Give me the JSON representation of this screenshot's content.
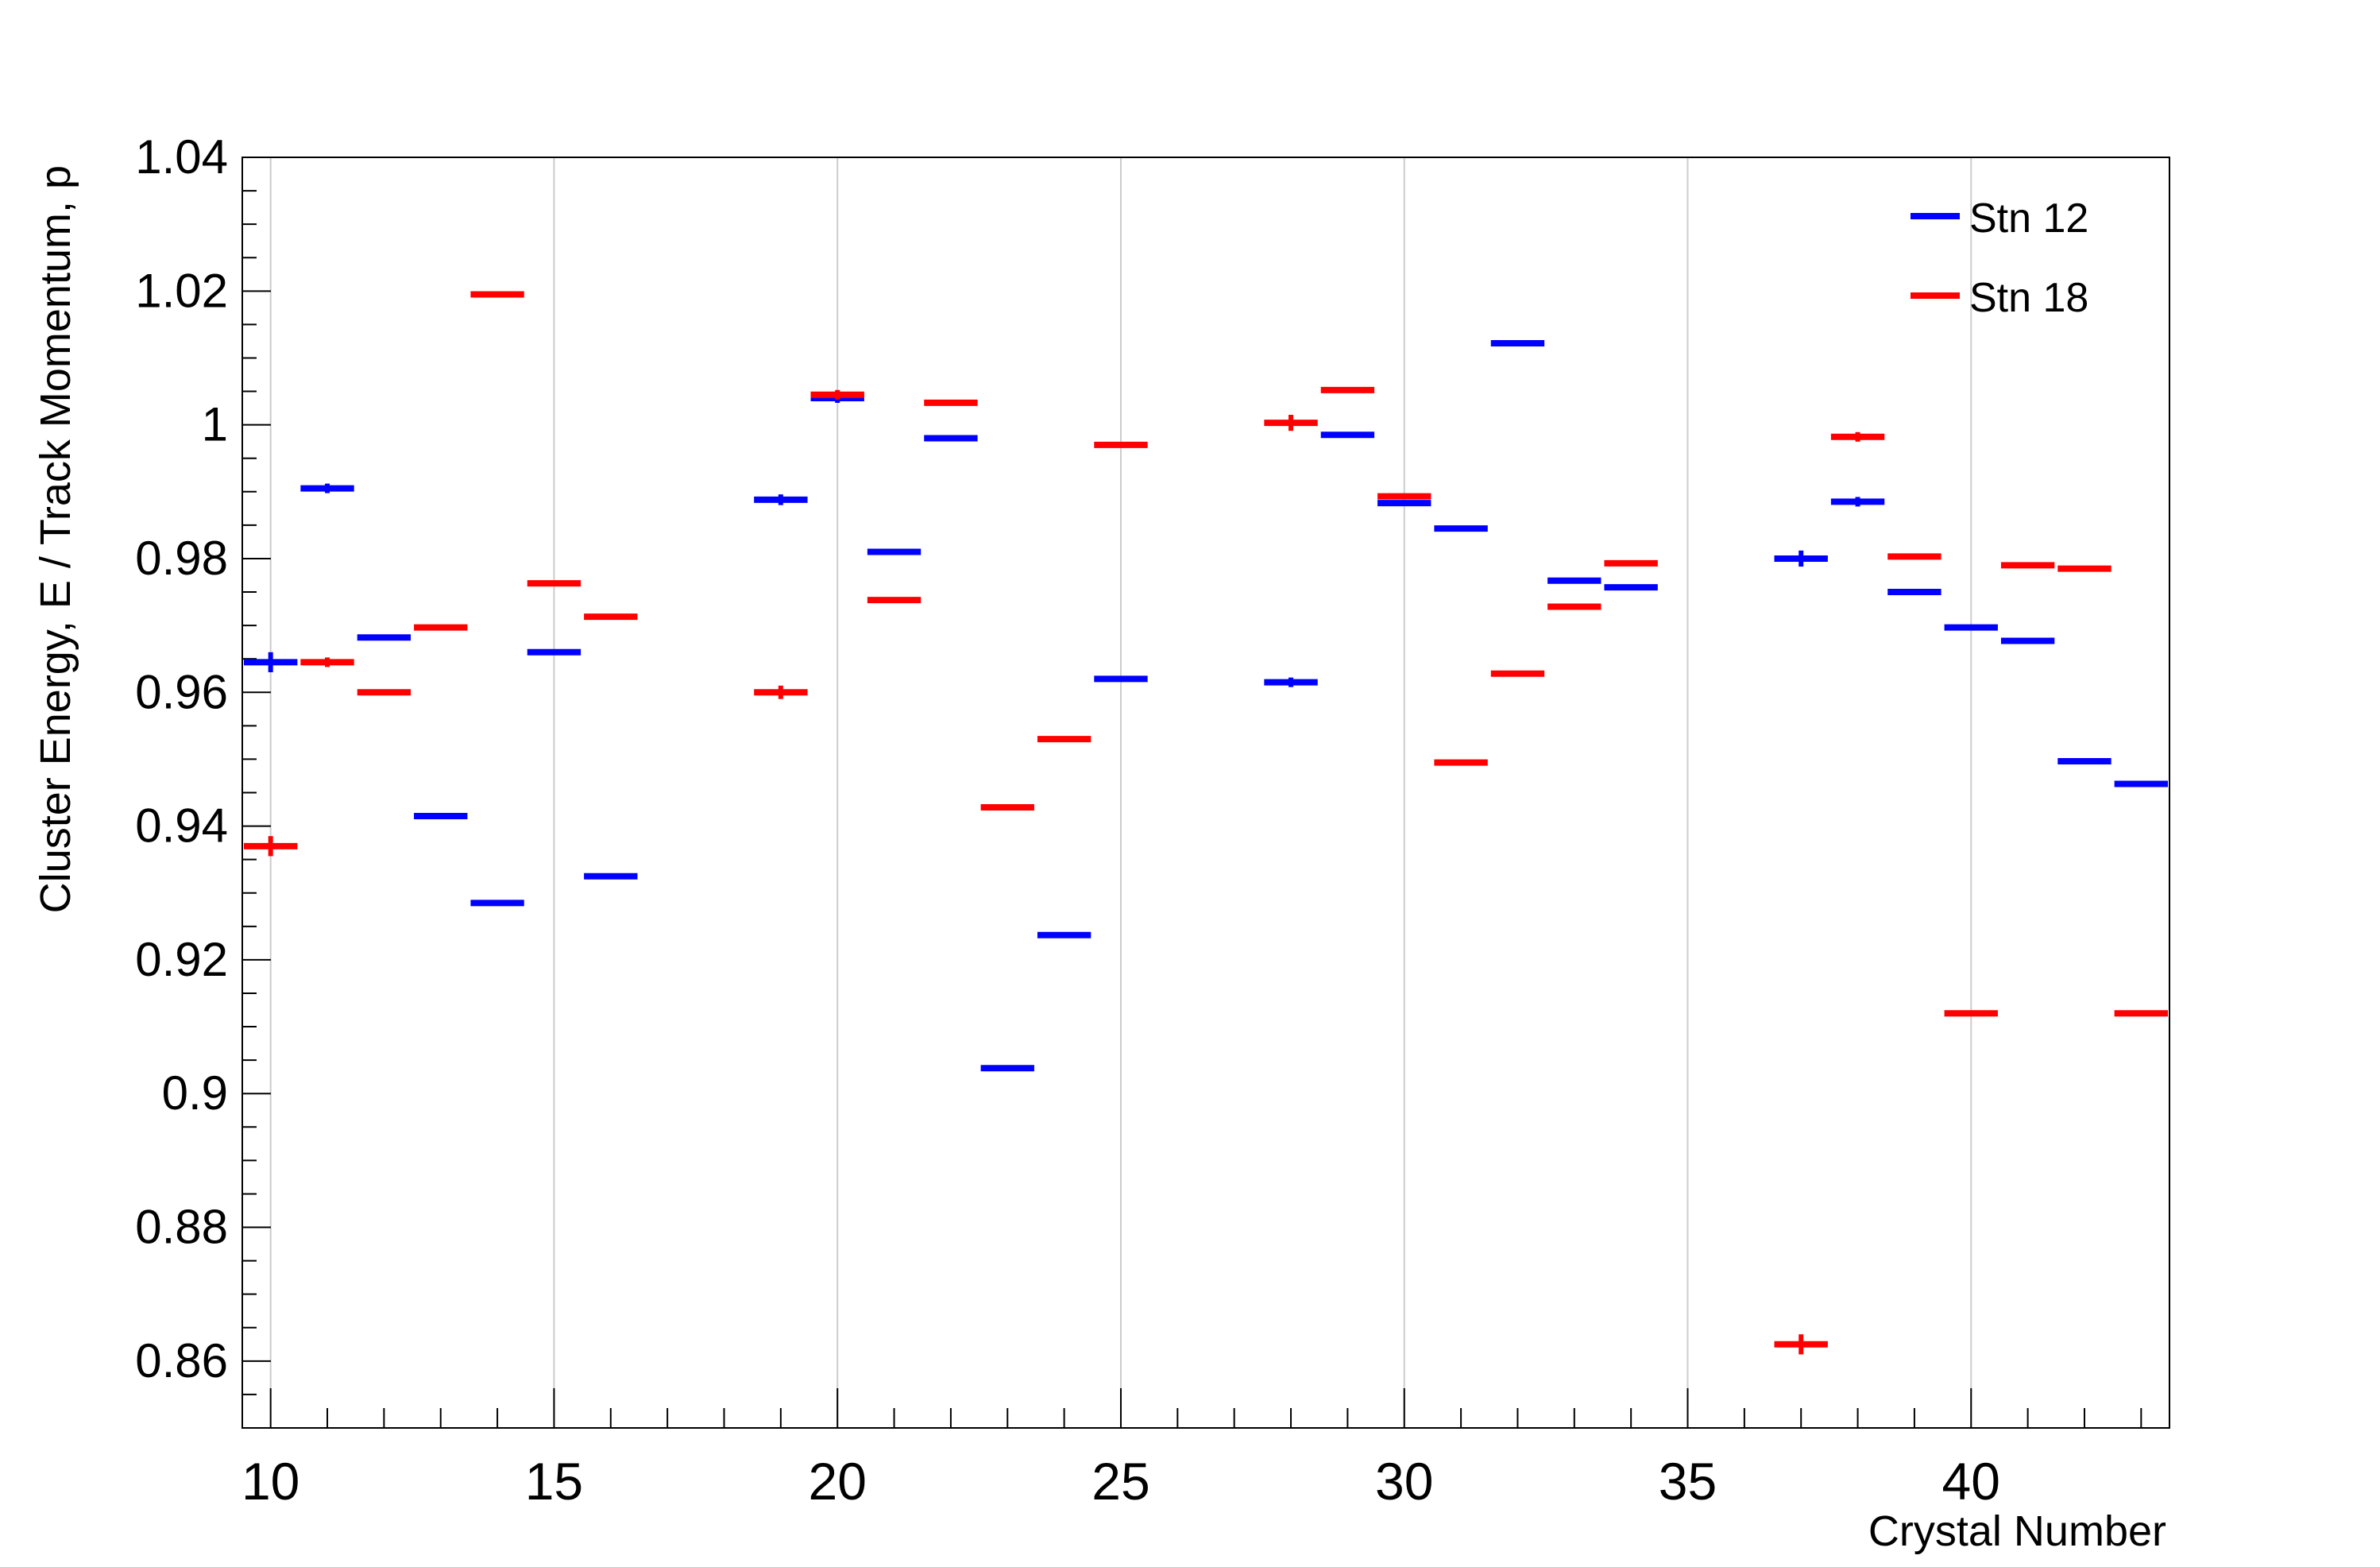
{
  "chart_data": {
    "type": "scatter",
    "title": "",
    "xlabel": "Crystal Number",
    "ylabel": "Cluster Energy, E / Track Momentum, p",
    "xlim": [
      9.5,
      43.5
    ],
    "ylim": [
      0.85,
      1.04
    ],
    "x_ticks": [
      "10",
      "15",
      "20",
      "25",
      "30",
      "35",
      "40"
    ],
    "y_ticks": [
      "0.86",
      "0.88",
      "0.9",
      "0.92",
      "0.94",
      "0.96",
      "0.98",
      "1",
      "1.02",
      "1.04"
    ],
    "grid": "vertical",
    "legend_position": "top-right",
    "series": [
      {
        "name": "Stn 12",
        "color": "#0000ff",
        "points": [
          {
            "x": 10,
            "y": 0.9645,
            "err": 0.0015
          },
          {
            "x": 11,
            "y": 0.9905,
            "err": 0.0005
          },
          {
            "x": 12,
            "y": 0.9682,
            "err": 0
          },
          {
            "x": 13,
            "y": 0.9415,
            "err": 0
          },
          {
            "x": 14,
            "y": 0.9285,
            "err": 0
          },
          {
            "x": 15,
            "y": 0.966,
            "err": 0
          },
          {
            "x": 16,
            "y": 0.9325,
            "err": 0
          },
          {
            "x": 19,
            "y": 0.9888,
            "err": 0.0008
          },
          {
            "x": 20,
            "y": 1.004,
            "err": 0.0005
          },
          {
            "x": 21,
            "y": 0.981,
            "err": 0
          },
          {
            "x": 22,
            "y": 0.998,
            "err": 0
          },
          {
            "x": 23,
            "y": 0.9038,
            "err": 0
          },
          {
            "x": 24,
            "y": 0.9237,
            "err": 0
          },
          {
            "x": 25,
            "y": 0.962,
            "err": 0
          },
          {
            "x": 28,
            "y": 0.9615,
            "err": 0.0007
          },
          {
            "x": 29,
            "y": 0.9985,
            "err": 0
          },
          {
            "x": 30,
            "y": 0.9883,
            "err": 0
          },
          {
            "x": 31,
            "y": 0.9845,
            "err": 0
          },
          {
            "x": 32,
            "y": 1.0122,
            "err": 0
          },
          {
            "x": 33,
            "y": 0.9767,
            "err": 0
          },
          {
            "x": 34,
            "y": 0.9757,
            "err": 0
          },
          {
            "x": 37,
            "y": 0.98,
            "err": 0.0012
          },
          {
            "x": 38,
            "y": 0.9885,
            "err": 0.0005
          },
          {
            "x": 39,
            "y": 0.975,
            "err": 0
          },
          {
            "x": 40,
            "y": 0.9697,
            "err": 0
          },
          {
            "x": 41,
            "y": 0.9677,
            "err": 0
          },
          {
            "x": 42,
            "y": 0.9497,
            "err": 0
          },
          {
            "x": 43,
            "y": 0.9463,
            "err": 0
          }
        ]
      },
      {
        "name": "Stn 18",
        "color": "#ff0000",
        "points": [
          {
            "x": 10,
            "y": 0.937,
            "err": 0.0015
          },
          {
            "x": 11,
            "y": 0.9645,
            "err": 0.0006
          },
          {
            "x": 12,
            "y": 0.96,
            "err": 0
          },
          {
            "x": 13,
            "y": 0.9697,
            "err": 0
          },
          {
            "x": 14,
            "y": 1.0195,
            "err": 0
          },
          {
            "x": 15,
            "y": 0.9763,
            "err": 0
          },
          {
            "x": 16,
            "y": 0.9713,
            "err": 0
          },
          {
            "x": 19,
            "y": 0.96,
            "err": 0.001
          },
          {
            "x": 20,
            "y": 1.0045,
            "err": 0.0005
          },
          {
            "x": 21,
            "y": 0.9738,
            "err": 0
          },
          {
            "x": 22,
            "y": 1.0033,
            "err": 0
          },
          {
            "x": 23,
            "y": 0.9428,
            "err": 0
          },
          {
            "x": 24,
            "y": 0.953,
            "err": 0
          },
          {
            "x": 25,
            "y": 0.997,
            "err": 0
          },
          {
            "x": 28,
            "y": 1.0003,
            "err": 0.0012
          },
          {
            "x": 29,
            "y": 1.0052,
            "err": 0
          },
          {
            "x": 30,
            "y": 0.9893,
            "err": 0
          },
          {
            "x": 31,
            "y": 0.9495,
            "err": 0
          },
          {
            "x": 32,
            "y": 0.9628,
            "err": 0
          },
          {
            "x": 33,
            "y": 0.9728,
            "err": 0
          },
          {
            "x": 34,
            "y": 0.9793,
            "err": 0
          },
          {
            "x": 37,
            "y": 0.8625,
            "err": 0.0015
          },
          {
            "x": 38,
            "y": 0.9982,
            "err": 0.0006
          },
          {
            "x": 39,
            "y": 0.9803,
            "err": 0
          },
          {
            "x": 40,
            "y": 0.912,
            "err": 0
          },
          {
            "x": 41,
            "y": 0.979,
            "err": 0
          },
          {
            "x": 42,
            "y": 0.9785,
            "err": 0
          },
          {
            "x": 43,
            "y": 0.912,
            "err": 0
          }
        ]
      }
    ]
  }
}
